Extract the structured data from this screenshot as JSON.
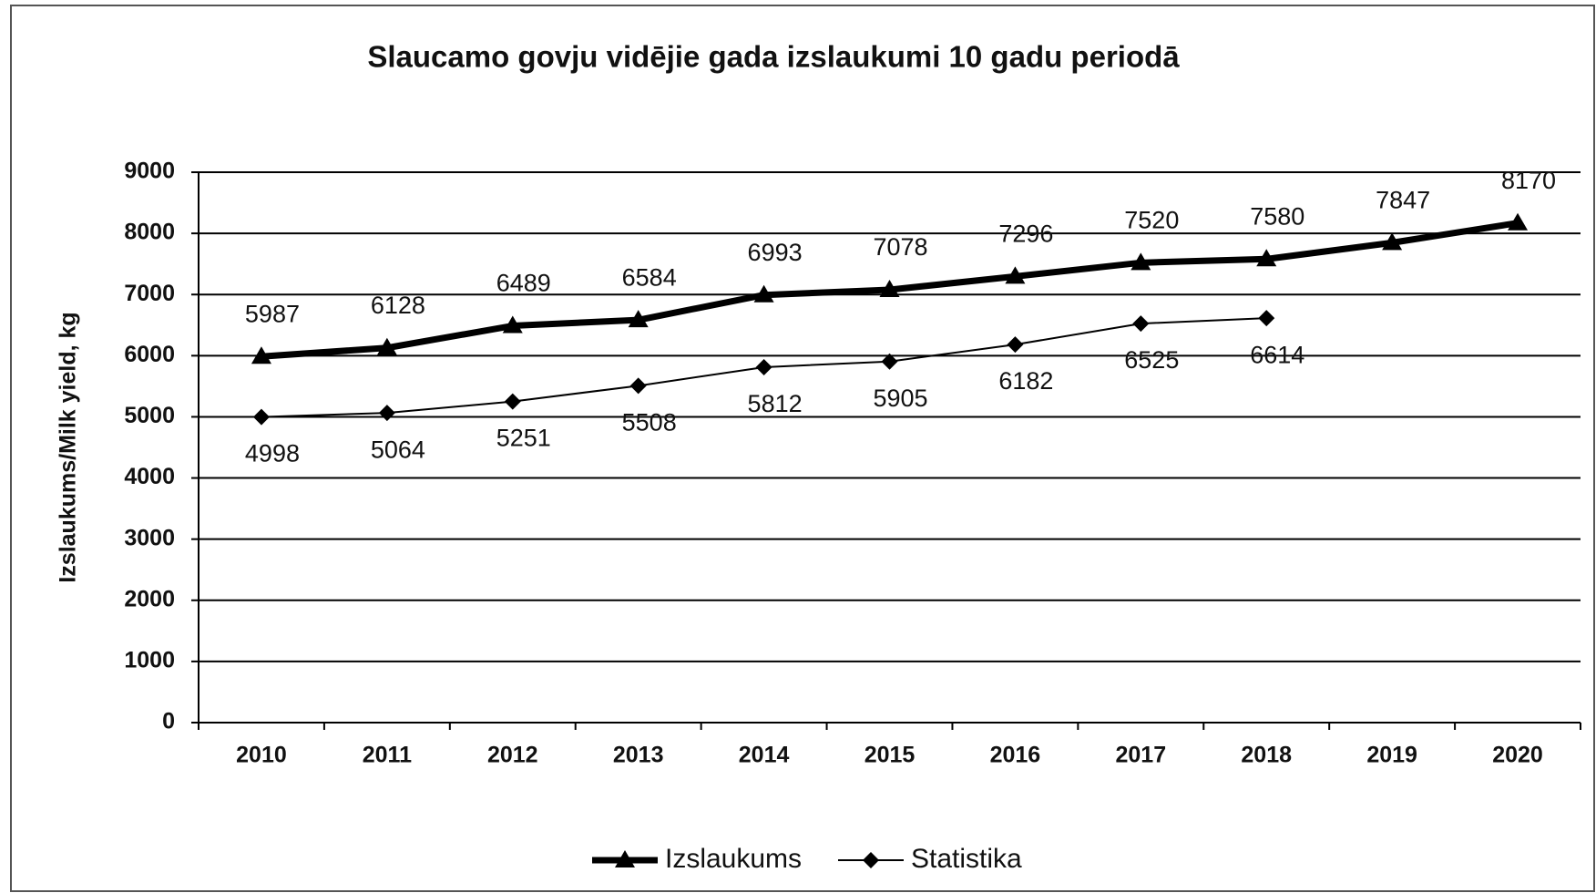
{
  "chart_data": {
    "type": "line",
    "title": "Slaucamo govju vidējie gada izslaukumi 10 gadu periodā",
    "y_label": "Izslaukums/Milk yield, kg",
    "categories": [
      "2010",
      "2011",
      "2012",
      "2013",
      "2014",
      "2015",
      "2016",
      "2017",
      "2018",
      "2019",
      "2020"
    ],
    "series": [
      {
        "name": "Izslaukums",
        "color": "#000000",
        "values": [
          5987,
          6128,
          6489,
          6584,
          6993,
          7078,
          7296,
          7520,
          7580,
          7847,
          8170
        ]
      },
      {
        "name": "Statistika",
        "color": "#000000",
        "values": [
          4998,
          5064,
          5251,
          5508,
          5812,
          5905,
          6182,
          6525,
          6614,
          null,
          null
        ]
      }
    ],
    "ylim": [
      0,
      9000
    ],
    "yticks": [
      0,
      1000,
      2000,
      3000,
      4000,
      5000,
      6000,
      7000,
      8000,
      9000
    ],
    "grid": true,
    "legend": "bottom"
  }
}
